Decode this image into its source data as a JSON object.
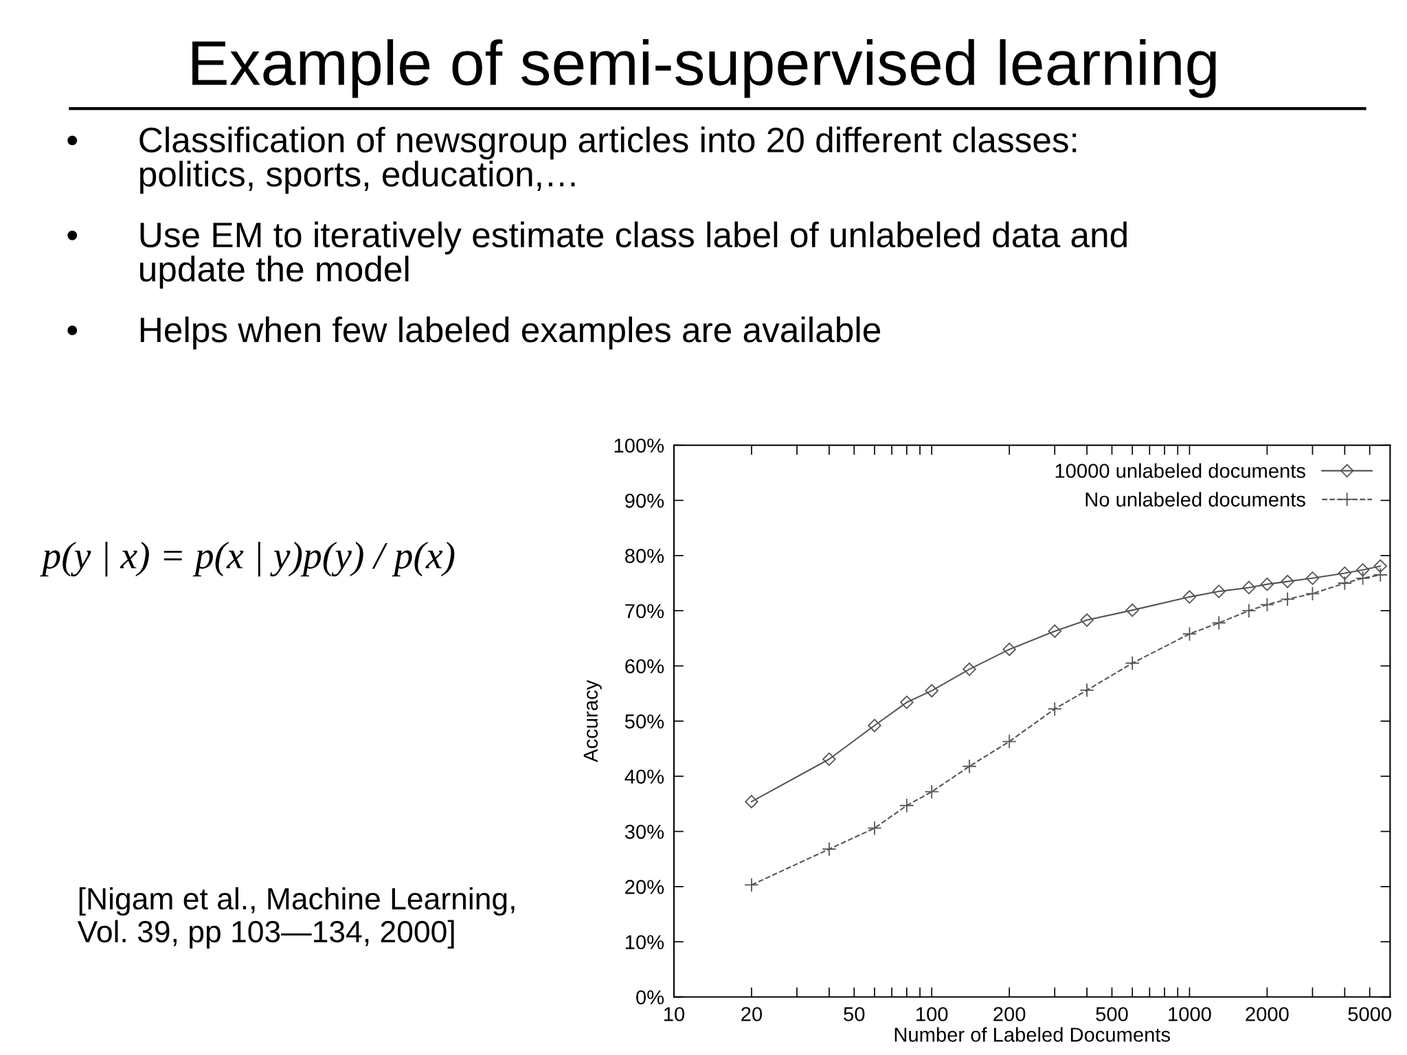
{
  "chart_data": {
    "type": "line",
    "title": "Example of semi-supervised learning",
    "xlabel": "Number of Labeled Documents",
    "ylabel": "Accuracy",
    "annotations": [
      "• Classification of newsgroup articles into 20 different classes:\npolitics, sports, education,…",
      "• Use EM to iteratively estimate class label of unlabeled data and\nupdate the model",
      "• Helps when few labeled examples are available",
      "p(y | x) = p(x | y)p(y) / p(x)",
      "[Nigam et al., Machine Learning,\nVol. 39, pp 103—134, 2000]"
    ],
    "x": [
      20,
      40,
      60,
      80,
      100,
      140,
      200,
      300,
      400,
      600,
      1000,
      1300,
      1700,
      2000,
      2400,
      3000,
      4000,
      4700,
      5500
    ],
    "series": [
      {
        "name": "10000 unlabeled documents",
        "color": "#555555",
        "marker": "diamond",
        "line_style": "solid",
        "values": [
          35.4,
          43.1,
          49.2,
          53.4,
          55.5,
          59.4,
          63.0,
          66.3,
          68.3,
          70.1,
          72.5,
          73.5,
          74.2,
          74.8,
          75.3,
          75.9,
          76.8,
          77.4,
          78.1
        ]
      },
      {
        "name": "No unlabeled documents",
        "color": "#555555",
        "marker": "cross",
        "line_style": "dashed",
        "values": [
          20.3,
          26.8,
          30.6,
          34.7,
          37.2,
          41.8,
          46.3,
          52.2,
          55.6,
          60.5,
          65.8,
          67.8,
          70.0,
          71.1,
          72.1,
          73.1,
          75.0,
          75.9,
          76.5
        ]
      }
    ],
    "log": "x",
    "xlim": [
      10,
      6000
    ],
    "xticks": [
      10,
      20,
      {
        "value": 30,
        "label": null
      },
      {
        "value": 40,
        "label": null
      },
      50,
      {
        "value": 60,
        "label": null
      },
      {
        "value": 70,
        "label": null
      },
      {
        "value": 80,
        "label": null
      },
      {
        "value": 90,
        "label": null
      },
      100,
      200,
      {
        "value": 300,
        "label": null
      },
      {
        "value": 400,
        "label": null
      },
      500,
      {
        "value": 600,
        "label": null
      },
      {
        "value": 700,
        "label": null
      },
      {
        "value": 800,
        "label": null
      },
      {
        "value": 900,
        "label": null
      },
      1000,
      2000,
      {
        "value": 3000,
        "label": null
      },
      {
        "value": 4000,
        "label": null
      },
      5000
    ],
    "ylim": [
      0,
      100
    ],
    "yticks": [
      {
        "value": 0,
        "label": "0%"
      },
      {
        "value": 10,
        "label": "10%"
      },
      {
        "value": 20,
        "label": "20%"
      },
      {
        "value": 30,
        "label": "30%"
      },
      {
        "value": 40,
        "label": "40%"
      },
      {
        "value": 50,
        "label": "50%"
      },
      {
        "value": 60,
        "label": "60%"
      },
      {
        "value": 70,
        "label": "70%"
      },
      {
        "value": 80,
        "label": "80%"
      },
      {
        "value": 90,
        "label": "90%"
      },
      {
        "value": 100,
        "label": "100%"
      }
    ],
    "grid": false,
    "legend": "top right"
  }
}
